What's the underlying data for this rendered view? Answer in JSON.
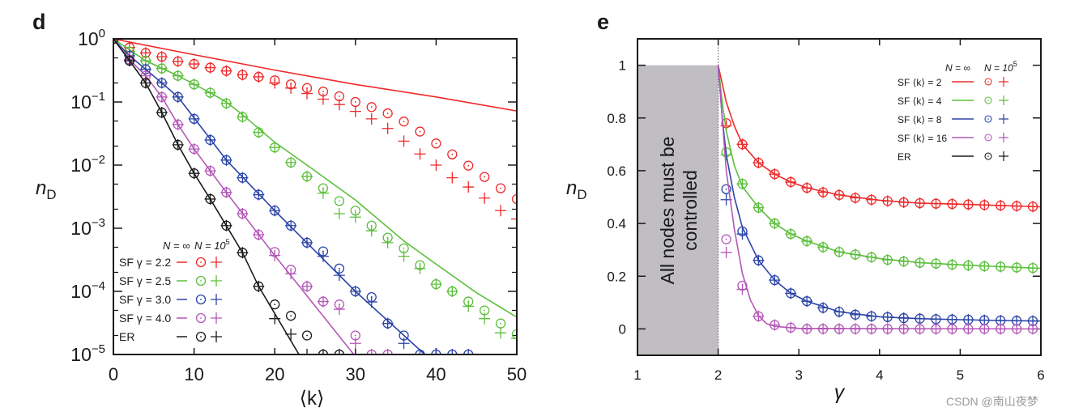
{
  "watermark": "CSDN @南山夜梦",
  "chart_data": [
    {
      "panel_label": "d",
      "type": "line",
      "xlabel": "⟨k⟩",
      "ylabel": "n",
      "ylabel_sub": "D",
      "xlim": [
        0,
        50
      ],
      "ylim": [
        1e-05,
        1
      ],
      "yscale": "log",
      "grid": false,
      "xticks": [
        "0",
        "10",
        "20",
        "30",
        "40",
        "50"
      ],
      "yticks": [
        {
          "value": 1,
          "base": "10",
          "exp": "0"
        },
        {
          "value": 0.1,
          "base": "10",
          "exp": "−1"
        },
        {
          "value": 0.01,
          "base": "10",
          "exp": "−2"
        },
        {
          "value": 0.001,
          "base": "10",
          "exp": "−3"
        },
        {
          "value": 0.0001,
          "base": "10",
          "exp": "−4"
        },
        {
          "value": 1e-05,
          "base": "10",
          "exp": "−5"
        }
      ],
      "legend": {
        "placement": "bottom-left",
        "header_inf": "N = ∞",
        "header_finite": "N = 10",
        "header_finite_exp": "5"
      },
      "marker_x": [
        0,
        2,
        4,
        6,
        8,
        10,
        12,
        14,
        16,
        18,
        20,
        22,
        24,
        26,
        28,
        30,
        32,
        34,
        36,
        38,
        40,
        42,
        44,
        46,
        48,
        50
      ],
      "series": [
        {
          "name": "SF γ = 2.2",
          "color": "#ee2a2a",
          "line": [
            [
              0,
              1
            ],
            [
              10,
              0.56
            ],
            [
              20,
              0.32
            ],
            [
              30,
              0.19
            ],
            [
              40,
              0.12
            ],
            [
              50,
              0.072
            ]
          ],
          "circles": [
            1,
            0.73,
            0.6,
            0.52,
            0.44,
            0.4,
            0.35,
            0.31,
            0.27,
            0.25,
            0.22,
            0.19,
            0.166,
            0.146,
            0.123,
            0.1,
            0.083,
            0.066,
            0.049,
            0.034,
            0.022,
            0.0148,
            0.0098,
            0.0065,
            0.0043,
            0.0029
          ],
          "pluses": [
            1,
            0.73,
            0.6,
            0.52,
            0.44,
            0.4,
            0.35,
            0.31,
            0.27,
            0.25,
            0.2,
            0.166,
            0.136,
            0.111,
            0.091,
            0.071,
            0.054,
            0.038,
            0.024,
            0.015,
            0.01,
            0.0063,
            0.0045,
            0.003,
            0.0019,
            0.0014
          ]
        },
        {
          "name": "SF γ = 2.5",
          "color": "#5cbf3c",
          "line": [
            [
              0,
              1
            ],
            [
              4,
              0.45
            ],
            [
              8,
              0.26
            ],
            [
              12,
              0.14
            ],
            [
              14,
              0.1
            ],
            [
              16,
              0.063
            ],
            [
              18,
              0.038
            ],
            [
              20,
              0.023
            ],
            [
              24,
              0.01
            ],
            [
              30,
              0.0028
            ],
            [
              36,
              0.00063
            ],
            [
              40,
              0.00027
            ],
            [
              45,
              9.5e-05
            ],
            [
              50,
              3.9e-05
            ]
          ],
          "circles": [
            1,
            0.63,
            0.45,
            0.34,
            0.26,
            0.19,
            0.14,
            0.095,
            0.058,
            0.033,
            0.019,
            0.011,
            0.0066,
            0.0043,
            0.0027,
            0.0019,
            0.0011,
            0.00071,
            0.00048,
            0.00026,
            0.00013,
            0.0001,
            6.9e-05,
            5e-05,
            3.1e-05,
            2.1e-05
          ],
          "pluses": [
            1,
            0.63,
            0.45,
            0.34,
            0.26,
            0.19,
            0.14,
            0.095,
            0.058,
            0.033,
            0.019,
            0.011,
            0.0066,
            0.0036,
            0.0017,
            0.0015,
            0.00091,
            0.00059,
            0.00036,
            0.00023,
            0.00013,
            0.0001,
            5.8e-05,
            3.7e-05,
            2.2e-05,
            1.8e-05
          ]
        },
        {
          "name": "SF γ = 3.0",
          "color": "#2b45a8",
          "line": [
            [
              0,
              1
            ],
            [
              2,
              0.54
            ],
            [
              4,
              0.33
            ],
            [
              6,
              0.2
            ],
            [
              8,
              0.12
            ],
            [
              10,
              0.056
            ],
            [
              14,
              0.012
            ],
            [
              20,
              0.0019
            ],
            [
              30,
              0.0001
            ],
            [
              38.6,
              1e-05
            ]
          ],
          "circles": [
            1,
            0.54,
            0.33,
            0.2,
            0.12,
            0.054,
            0.025,
            0.012,
            0.0063,
            0.0034,
            0.0019,
            0.0011,
            0.00059,
            0.00043,
            0.00023,
            0.0001,
            8.1e-05,
            3.1e-05,
            2e-05,
            1e-05,
            1e-05,
            1e-05,
            1e-05
          ],
          "pluses": [
            1,
            0.54,
            0.33,
            0.2,
            0.12,
            0.054,
            0.025,
            0.012,
            0.0063,
            0.0034,
            0.0019,
            0.0011,
            0.00059,
            0.00036,
            0.00018,
            0.0001,
            6.8e-05,
            3.1e-05,
            1.5e-05,
            1e-05,
            1e-05,
            1e-05,
            1e-05
          ]
        },
        {
          "name": "SF γ = 4.0",
          "color": "#b458b8",
          "line": [
            [
              0,
              1
            ],
            [
              2,
              0.47
            ],
            [
              4,
              0.26
            ],
            [
              6,
              0.12
            ],
            [
              8,
              0.044
            ],
            [
              10,
              0.018
            ],
            [
              14,
              0.0037
            ],
            [
              20,
              0.00037
            ],
            [
              29.8,
              1e-05
            ]
          ],
          "circles": [
            1,
            0.47,
            0.26,
            0.12,
            0.044,
            0.018,
            0.0081,
            0.0037,
            0.0017,
            0.00079,
            0.00042,
            0.00022,
            0.00012,
            6.9e-05,
            6.2e-05,
            2e-05,
            1e-05,
            1e-05
          ],
          "pluses": [
            1,
            0.47,
            0.26,
            0.12,
            0.044,
            0.018,
            0.0081,
            0.0037,
            0.0017,
            0.00079,
            0.00037,
            0.00019,
            0.00012,
            6.9e-05,
            5.2e-05,
            1.5e-05,
            1e-05,
            1e-05
          ]
        },
        {
          "name": "ER",
          "color": "#1a1a1a",
          "line": [
            [
              0,
              1
            ],
            [
              2,
              0.45
            ],
            [
              4,
              0.2
            ],
            [
              6,
              0.068
            ],
            [
              8,
              0.021
            ],
            [
              10,
              0.0074
            ],
            [
              12,
              0.0029
            ],
            [
              14,
              0.0011
            ],
            [
              16,
              0.00041
            ],
            [
              18,
              0.00012
            ],
            [
              23,
              1e-05
            ]
          ],
          "circles": [
            1,
            0.45,
            0.2,
            0.068,
            0.021,
            0.0074,
            0.0029,
            0.0011,
            0.00041,
            0.00012,
            6.2e-05,
            4.1e-05,
            2e-05,
            1e-05,
            1e-05
          ],
          "pluses": [
            1,
            0.45,
            0.2,
            0.068,
            0.021,
            0.0074,
            0.0029,
            0.0011,
            0.00041,
            0.00012,
            3.7e-05,
            2.1e-05,
            1e-05,
            1e-05,
            1e-05
          ]
        }
      ]
    },
    {
      "panel_label": "e",
      "type": "line",
      "xlabel": "γ",
      "ylabel": "n",
      "ylabel_sub": "D",
      "xlim": [
        1,
        6
      ],
      "ylim": [
        -0.1,
        1.1
      ],
      "grid": false,
      "xticks": [
        "1",
        "2",
        "3",
        "4",
        "5",
        "6"
      ],
      "yticks": [
        "0",
        "0.2",
        "0.4",
        "0.6",
        "0.8",
        "1"
      ],
      "shaded_region": {
        "x": [
          1,
          2
        ],
        "color": "#c0bec2",
        "text_lines": [
          "All nodes must be",
          "controlled"
        ]
      },
      "legend": {
        "placement": "top-right",
        "header_inf": "N = ∞",
        "header_finite": "N = 10",
        "header_finite_exp": "5"
      },
      "marker_x": [
        2.1,
        2.3,
        2.5,
        2.7,
        2.9,
        3.1,
        3.3,
        3.5,
        3.7,
        3.9,
        4.1,
        4.3,
        4.5,
        4.7,
        4.9,
        5.1,
        5.3,
        5.5,
        5.7,
        5.9
      ],
      "series": [
        {
          "name": "SF ⟨k⟩ = 2",
          "color": "#ee2a2a",
          "line": [
            [
              2,
              1
            ],
            [
              2.1,
              0.86
            ],
            [
              2.2,
              0.77
            ],
            [
              2.3,
              0.7
            ],
            [
              2.5,
              0.63
            ],
            [
              2.7,
              0.587
            ],
            [
              2.9,
              0.557
            ],
            [
              3.1,
              0.535
            ],
            [
              3.5,
              0.508
            ],
            [
              4,
              0.488
            ],
            [
              4.5,
              0.477
            ],
            [
              5,
              0.473
            ],
            [
              5.5,
              0.468
            ],
            [
              6,
              0.463
            ]
          ],
          "circles": [
            0.78,
            0.7,
            0.63,
            0.587,
            0.557,
            0.535,
            0.518,
            0.508,
            0.497,
            0.49,
            0.485,
            0.48,
            0.477,
            0.475,
            0.474,
            0.472,
            0.47,
            0.468,
            0.466,
            0.464
          ],
          "pluses": [
            0.77,
            0.7,
            0.63,
            0.587,
            0.557,
            0.535,
            0.518,
            0.508,
            0.497,
            0.49,
            0.485,
            0.48,
            0.477,
            0.475,
            0.474,
            0.472,
            0.47,
            0.468,
            0.466,
            0.464
          ]
        },
        {
          "name": "SF ⟨k⟩ = 4",
          "color": "#5cbf3c",
          "line": [
            [
              2,
              1
            ],
            [
              2.05,
              0.86
            ],
            [
              2.1,
              0.75
            ],
            [
              2.2,
              0.62
            ],
            [
              2.3,
              0.54
            ],
            [
              2.5,
              0.46
            ],
            [
              2.7,
              0.4
            ],
            [
              2.9,
              0.36
            ],
            [
              3.1,
              0.333
            ],
            [
              3.5,
              0.292
            ],
            [
              4,
              0.267
            ],
            [
              4.5,
              0.251
            ],
            [
              5,
              0.243
            ],
            [
              5.5,
              0.236
            ],
            [
              6,
              0.23
            ]
          ],
          "circles": [
            0.67,
            0.55,
            0.46,
            0.4,
            0.36,
            0.333,
            0.31,
            0.292,
            0.282,
            0.272,
            0.262,
            0.256,
            0.251,
            0.248,
            0.244,
            0.241,
            0.238,
            0.236,
            0.233,
            0.231
          ],
          "pluses": [
            0.66,
            0.55,
            0.46,
            0.4,
            0.36,
            0.333,
            0.31,
            0.292,
            0.282,
            0.272,
            0.262,
            0.256,
            0.251,
            0.248,
            0.244,
            0.241,
            0.238,
            0.236,
            0.233,
            0.231
          ]
        },
        {
          "name": "SF ⟨k⟩ = 8",
          "color": "#2b45a8",
          "line": [
            [
              2,
              1
            ],
            [
              2.05,
              0.8
            ],
            [
              2.1,
              0.66
            ],
            [
              2.2,
              0.5
            ],
            [
              2.3,
              0.385
            ],
            [
              2.5,
              0.26
            ],
            [
              2.7,
              0.185
            ],
            [
              2.9,
              0.135
            ],
            [
              3.1,
              0.105
            ],
            [
              3.5,
              0.065
            ],
            [
              4,
              0.046
            ],
            [
              4.5,
              0.039
            ],
            [
              5,
              0.035
            ],
            [
              5.5,
              0.032
            ],
            [
              6,
              0.03
            ]
          ],
          "circles": [
            0.53,
            0.37,
            0.26,
            0.185,
            0.135,
            0.105,
            0.08,
            0.065,
            0.054,
            0.048,
            0.045,
            0.041,
            0.039,
            0.037,
            0.036,
            0.035,
            0.033,
            0.032,
            0.031,
            0.03
          ],
          "pluses": [
            0.49,
            0.36,
            0.26,
            0.185,
            0.135,
            0.105,
            0.08,
            0.065,
            0.054,
            0.048,
            0.045,
            0.041,
            0.039,
            0.037,
            0.036,
            0.035,
            0.033,
            0.032,
            0.031,
            0.03
          ]
        },
        {
          "name": "SF ⟨k⟩ = 16",
          "color": "#b458b8",
          "line": [
            [
              2,
              1
            ],
            [
              2.05,
              0.8
            ],
            [
              2.1,
              0.6
            ],
            [
              2.2,
              0.38
            ],
            [
              2.3,
              0.21
            ],
            [
              2.4,
              0.11
            ],
            [
              2.5,
              0.05
            ],
            [
              2.6,
              0.02
            ],
            [
              2.7,
              0.01
            ],
            [
              3,
              0.002
            ],
            [
              6,
              0
            ]
          ],
          "circles": [
            0.34,
            0.164,
            0.048,
            0.015,
            0.005,
            0,
            0,
            0,
            0,
            0,
            0,
            0,
            0,
            0,
            0,
            0,
            0,
            0,
            0,
            0
          ],
          "pluses": [
            0.29,
            0.15,
            0.048,
            0.015,
            0.005,
            0,
            0,
            0,
            0,
            0,
            0,
            0,
            0,
            0,
            0,
            0,
            0,
            0,
            0,
            0
          ]
        },
        {
          "name": "ER",
          "color": "#1a1a1a",
          "line": [],
          "circles": [],
          "pluses": []
        }
      ]
    }
  ]
}
